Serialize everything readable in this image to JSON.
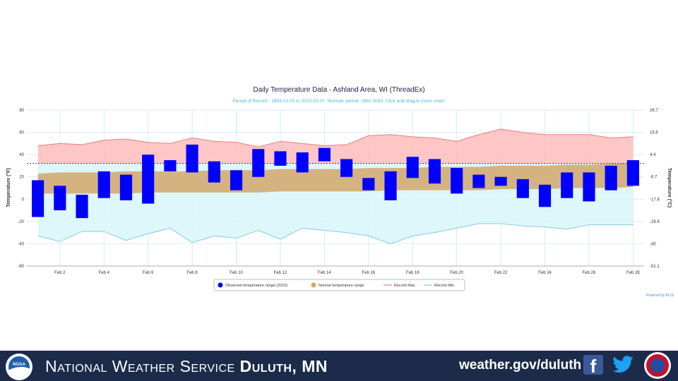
{
  "chart_data": {
    "type": "bar",
    "title": "Daily Temperature Data - Ashland Area, WI (ThreadEx)",
    "subtitle": "Period of Record - 1893-03-01 to 2023-03-07. Normals period: 1991-2020. Click and drag to zoom chart.",
    "ylabel": "Temperature (°F)",
    "y2label": "Temperature (°C)",
    "ylim": [
      -60,
      80
    ],
    "yticks": [
      "80",
      "60",
      "40",
      "20",
      "0",
      "-20",
      "-40",
      "-60"
    ],
    "y2ticks": [
      "26.7",
      "15.6",
      "4.4",
      "-6.7",
      "-17.8",
      "-28.9",
      "-40",
      "-51.1"
    ],
    "xlim": [
      1,
      28
    ],
    "xticks": [
      "Feb 2",
      "Feb 4",
      "Feb 6",
      "Feb 8",
      "Feb 10",
      "Feb 12",
      "Feb 14",
      "Feb 16",
      "Feb 18",
      "Feb 20",
      "Feb 22",
      "Feb 24",
      "Feb 26",
      "Feb 28"
    ],
    "days": [
      1,
      2,
      3,
      4,
      5,
      6,
      7,
      8,
      9,
      10,
      11,
      12,
      13,
      14,
      15,
      16,
      17,
      18,
      19,
      20,
      21,
      22,
      23,
      24,
      25,
      26,
      27,
      28
    ],
    "series": [
      {
        "name": "Observed temperature range (2023)",
        "kind": "range-bar",
        "color": "#0000ff",
        "low": [
          -16,
          -10,
          -17,
          1,
          -1,
          -4,
          25,
          24,
          15,
          8,
          20,
          30,
          24,
          34,
          20,
          8,
          -1,
          19,
          14,
          5,
          10,
          12,
          1,
          -7,
          1,
          -2,
          8,
          12
        ],
        "high": [
          17,
          12,
          4,
          25,
          22,
          40,
          35,
          49,
          34,
          26,
          45,
          43,
          42,
          46,
          36,
          19,
          25,
          38,
          36,
          28,
          22,
          20,
          18,
          13,
          24,
          24,
          30,
          35
        ]
      },
      {
        "name": "Normal temperature range",
        "kind": "area-range",
        "color": "#d4a76a",
        "low": [
          5,
          5,
          5,
          5,
          5,
          6,
          6,
          6,
          6,
          6,
          6,
          7,
          7,
          7,
          7,
          7,
          8,
          8,
          8,
          8,
          8,
          9,
          9,
          9,
          10,
          10,
          10,
          11
        ],
        "high": [
          23,
          24,
          24,
          24,
          25,
          25,
          25,
          25,
          26,
          26,
          26,
          27,
          27,
          27,
          27,
          28,
          28,
          28,
          29,
          29,
          29,
          30,
          30,
          30,
          31,
          31,
          32,
          32
        ]
      },
      {
        "name": "Record Max",
        "kind": "line",
        "color": "#e8807d",
        "values": [
          48,
          50,
          49,
          53,
          54,
          51,
          50,
          55,
          52,
          51,
          47,
          52,
          50,
          48,
          49,
          57,
          58,
          56,
          55,
          52,
          58,
          63,
          60,
          58,
          58,
          58,
          55,
          56
        ]
      },
      {
        "name": "Record Min",
        "kind": "line",
        "color": "#88ccdd",
        "values": [
          -33,
          -38,
          -29,
          -29,
          -37,
          -31,
          -26,
          -39,
          -33,
          -35,
          -28,
          -36,
          -26,
          -28,
          -30,
          -33,
          -40,
          -33,
          -30,
          -26,
          -22,
          -22,
          -24,
          -25,
          -27,
          -23,
          -23,
          -23
        ]
      }
    ],
    "reference_line": {
      "value": 32,
      "style": "dashed",
      "color": "#000000"
    },
    "legend_position": "bottom",
    "credit": "Powered by ACIS",
    "grid": true,
    "colors": {
      "above_freezing_fill": "#ffbcbc",
      "below_freezing_fill": "#d9f6fb",
      "grid": "#c8e4ec",
      "axis_text": "#333333",
      "subtitle": "#4ab0d9"
    }
  },
  "footer": {
    "org_prefix": "National Weather Service",
    "org_office": "Duluth, MN",
    "url": "weather.gov/duluth",
    "noaa_logo_text": "NOAA",
    "icons": [
      "noaa-logo",
      "facebook-icon",
      "twitter-icon",
      "nws-logo"
    ]
  }
}
